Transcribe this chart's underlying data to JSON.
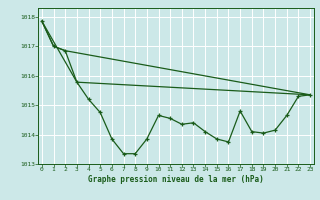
{
  "main_line": {
    "x": [
      0,
      1,
      2,
      3,
      4,
      5,
      6,
      7,
      8,
      9,
      10,
      11,
      12,
      13,
      14,
      15,
      16,
      17,
      18,
      19,
      20,
      21,
      22,
      23
    ],
    "y": [
      1017.85,
      1017.0,
      1016.85,
      1015.78,
      1015.2,
      1014.75,
      1013.85,
      1013.35,
      1013.35,
      1013.85,
      1014.65,
      1014.55,
      1014.35,
      1014.4,
      1014.1,
      1013.85,
      1013.75,
      1014.8,
      1014.1,
      1014.05,
      1014.15,
      1014.65,
      1015.3,
      1015.35
    ]
  },
  "trend1": {
    "x": [
      0,
      1,
      2,
      23
    ],
    "y": [
      1017.85,
      1017.0,
      1016.85,
      1015.35
    ]
  },
  "trend2": {
    "x": [
      0,
      3,
      23
    ],
    "y": [
      1017.85,
      1015.78,
      1015.35
    ]
  },
  "ylim": [
    1013.0,
    1018.3
  ],
  "xlim": [
    -0.3,
    23.3
  ],
  "yticks": [
    1013,
    1014,
    1015,
    1016,
    1017,
    1018
  ],
  "xticks": [
    0,
    1,
    2,
    3,
    4,
    5,
    6,
    7,
    8,
    9,
    10,
    11,
    12,
    13,
    14,
    15,
    16,
    17,
    18,
    19,
    20,
    21,
    22,
    23
  ],
  "xlabel": "Graphe pression niveau de la mer (hPa)",
  "bg_color": "#cce8e8",
  "grid_color": "#b0d8d8",
  "line_color": "#1a5c1a",
  "label_color": "#1a5c1a"
}
